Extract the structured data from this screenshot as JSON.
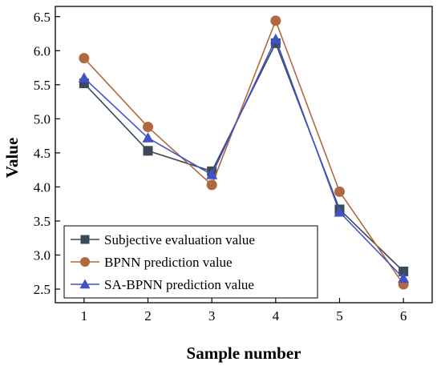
{
  "chart_data": {
    "type": "line",
    "xlabel": "Sample number",
    "ylabel": "Value",
    "x": [
      1,
      2,
      3,
      4,
      5,
      6
    ],
    "xlim": [
      0.55,
      6.45
    ],
    "ylim": [
      2.3,
      6.65
    ],
    "xticks": [
      "1",
      "2",
      "3",
      "4",
      "5",
      "6"
    ],
    "yticks": [
      "2.5",
      "3.0",
      "3.5",
      "4.0",
      "4.5",
      "5.0",
      "5.5",
      "6.0",
      "6.5"
    ],
    "grid": false,
    "legend_position": "bottom-left",
    "series": [
      {
        "name": "Subjective evaluation value",
        "values": [
          5.52,
          4.53,
          4.23,
          6.11,
          3.67,
          2.76
        ],
        "color": "#3b4a58",
        "marker": "square"
      },
      {
        "name": "BPNN prediction value",
        "values": [
          5.89,
          4.88,
          4.03,
          6.44,
          3.93,
          2.57
        ],
        "color": "#b0683e",
        "marker": "circle"
      },
      {
        "name": "SA-BPNN prediction value",
        "values": [
          5.6,
          4.72,
          4.18,
          6.17,
          3.63,
          2.66
        ],
        "color": "#3f52c8",
        "marker": "triangle"
      }
    ]
  }
}
